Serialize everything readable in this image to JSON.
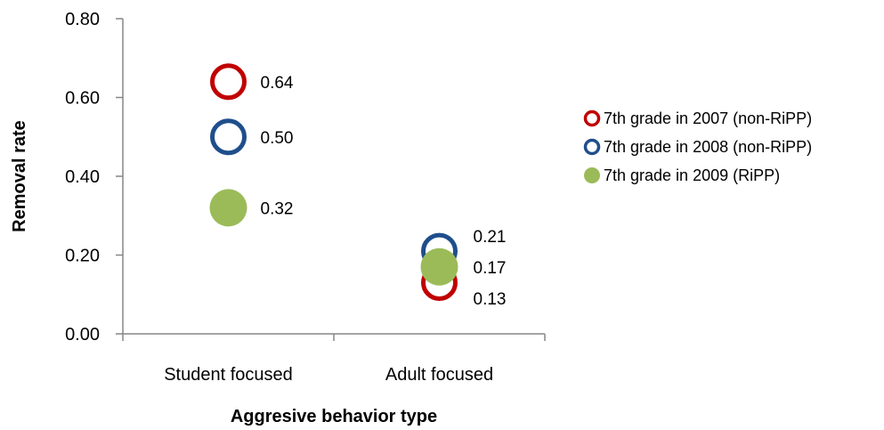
{
  "chart_data": {
    "type": "scatter",
    "title": "",
    "xlabel": "Aggresive behavior type",
    "ylabel": "Removal rate",
    "categories": [
      "Student focused",
      "Adult focused"
    ],
    "ylim": [
      0,
      0.8
    ],
    "yticks": [
      "0.00",
      "0.20",
      "0.40",
      "0.60",
      "0.80"
    ],
    "grid": false,
    "legend_position": "right",
    "series": [
      {
        "name": "7th grade in 2007 (non-RiPP)",
        "values": [
          0.64,
          0.13
        ],
        "labels": [
          "0.64",
          "0.13"
        ],
        "color": "#c00000",
        "marker": "hollow-circle"
      },
      {
        "name": "7th grade in 2008 (non-RiPP)",
        "values": [
          0.5,
          0.21
        ],
        "labels": [
          "0.50",
          "0.21"
        ],
        "color": "#1f4e8c",
        "marker": "hollow-circle"
      },
      {
        "name": "7th grade in 2009 (RiPP)",
        "values": [
          0.32,
          0.17
        ],
        "labels": [
          "0.32",
          "0.17"
        ],
        "color": "#9bbb59",
        "marker": "filled-circle"
      }
    ]
  }
}
